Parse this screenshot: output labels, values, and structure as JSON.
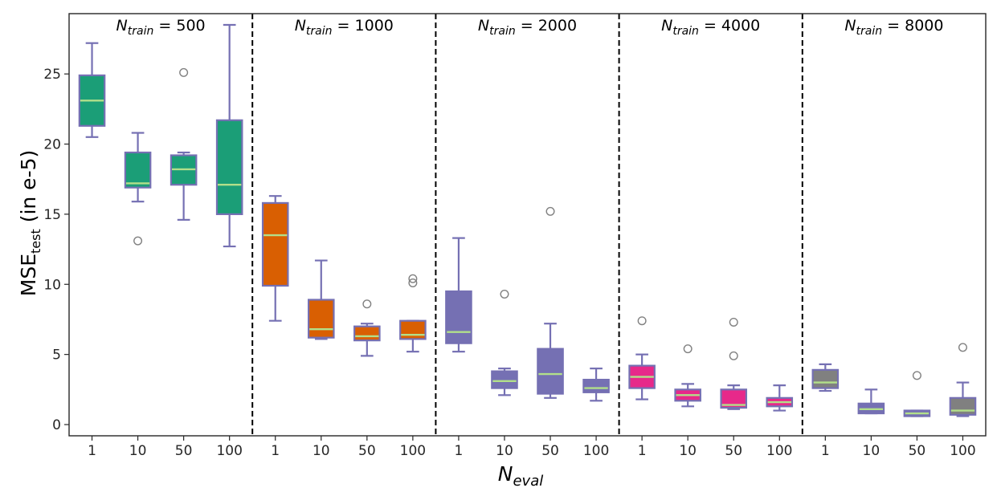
{
  "chart_data": {
    "type": "boxplot",
    "ylabel": {
      "main": "MSE",
      "sub": "test",
      "suffix": "  (in e-5)"
    },
    "xlabel": {
      "main": "N",
      "sub": "eval"
    },
    "ylim": [
      -0.8,
      29.3
    ],
    "yticks": [
      0,
      5,
      10,
      15,
      20,
      25
    ],
    "categories": [
      "1",
      "10",
      "50",
      "100"
    ],
    "box_edge_color": "#7570b3",
    "median_color": "#b2df8a",
    "outlier_color": "#808080",
    "panels": [
      {
        "label": {
          "main": "N",
          "sub": "train",
          "value": " = 500"
        },
        "fill": "#1b9e77",
        "boxes": [
          {
            "category": "1",
            "whislo": 20.5,
            "q1": 21.3,
            "med": 23.1,
            "q3": 24.9,
            "whishi": 27.2,
            "fliers": [],
            "filled": true
          },
          {
            "category": "10",
            "whislo": 15.9,
            "q1": 16.9,
            "med": 17.2,
            "q3": 19.4,
            "whishi": 20.8,
            "fliers": [
              13.1
            ],
            "filled": true
          },
          {
            "category": "50",
            "whislo": 14.6,
            "q1": 17.1,
            "med": 18.2,
            "q3": 19.2,
            "whishi": 19.4,
            "fliers": [
              25.1
            ],
            "filled": true
          },
          {
            "category": "100",
            "whislo": 12.7,
            "q1": 15.0,
            "med": 17.1,
            "q3": 21.7,
            "whishi": 28.5,
            "fliers": [],
            "filled": true
          }
        ]
      },
      {
        "label": {
          "main": "N",
          "sub": "train",
          "value": " = 1000"
        },
        "fill": "#d95f02",
        "boxes": [
          {
            "category": "1",
            "whislo": 7.4,
            "q1": 9.9,
            "med": 13.5,
            "q3": 15.8,
            "whishi": 16.3,
            "fliers": [],
            "filled": true
          },
          {
            "category": "10",
            "whislo": 6.1,
            "q1": 6.2,
            "med": 6.8,
            "q3": 8.9,
            "whishi": 11.7,
            "fliers": [],
            "filled": true
          },
          {
            "category": "50",
            "whislo": 4.9,
            "q1": 6.0,
            "med": 6.3,
            "q3": 7.0,
            "whishi": 7.2,
            "fliers": [
              8.6
            ],
            "filled": true
          },
          {
            "category": "100",
            "whislo": 5.2,
            "q1": 6.1,
            "med": 6.4,
            "q3": 7.4,
            "whishi": 7.4,
            "fliers": [
              10.1,
              10.4
            ],
            "filled": true
          }
        ]
      },
      {
        "label": {
          "main": "N",
          "sub": "train",
          "value": " = 2000"
        },
        "fill": "#7570b3",
        "boxes": [
          {
            "category": "1",
            "whislo": 5.2,
            "q1": 5.8,
            "med": 6.6,
            "q3": 9.5,
            "whishi": 13.3,
            "fliers": [],
            "filled": true
          },
          {
            "category": "10",
            "whislo": 2.1,
            "q1": 2.6,
            "med": 3.1,
            "q3": 3.8,
            "whishi": 4.0,
            "fliers": [
              9.3
            ],
            "filled": true
          },
          {
            "category": "50",
            "whislo": 1.9,
            "q1": 2.2,
            "med": 3.6,
            "q3": 5.4,
            "whishi": 7.2,
            "fliers": [
              15.2
            ],
            "filled": true
          },
          {
            "category": "100",
            "whislo": 1.7,
            "q1": 2.3,
            "med": 2.6,
            "q3": 3.2,
            "whishi": 4.0,
            "fliers": [],
            "filled": true
          }
        ]
      },
      {
        "label": {
          "main": "N",
          "sub": "train",
          "value": " = 4000"
        },
        "fill": "#e7298a",
        "boxes": [
          {
            "category": "1",
            "whislo": 1.8,
            "q1": 2.6,
            "med": 3.4,
            "q3": 4.2,
            "whishi": 5.0,
            "fliers": [
              7.4
            ],
            "filled": true
          },
          {
            "category": "10",
            "whislo": 1.3,
            "q1": 1.7,
            "med": 2.1,
            "q3": 2.5,
            "whishi": 2.9,
            "fliers": [
              5.4
            ],
            "filled": true
          },
          {
            "category": "50",
            "whislo": 1.1,
            "q1": 1.2,
            "med": 1.4,
            "q3": 2.5,
            "whishi": 2.8,
            "fliers": [
              4.9,
              7.3
            ],
            "filled": true
          },
          {
            "category": "100",
            "whislo": 1.0,
            "q1": 1.3,
            "med": 1.6,
            "q3": 1.9,
            "whishi": 2.8,
            "fliers": [],
            "filled": true
          }
        ]
      },
      {
        "label": {
          "main": "N",
          "sub": "train",
          "value": " = 8000"
        },
        "fill": "#808080",
        "boxes": [
          {
            "category": "1",
            "whislo": 2.4,
            "q1": 2.6,
            "med": 3.0,
            "q3": 3.9,
            "whishi": 4.3,
            "fliers": [],
            "filled": true
          },
          {
            "category": "10",
            "whislo": 0.8,
            "q1": 0.8,
            "med": 1.1,
            "q3": 1.5,
            "whishi": 2.5,
            "fliers": [],
            "filled": false
          },
          {
            "category": "50",
            "whislo": 0.6,
            "q1": 0.6,
            "med": 0.8,
            "q3": 1.0,
            "whishi": 1.0,
            "fliers": [
              3.5
            ],
            "filled": false
          },
          {
            "category": "100",
            "whislo": 0.6,
            "q1": 0.7,
            "med": 1.0,
            "q3": 1.9,
            "whishi": 3.0,
            "fliers": [
              5.5
            ],
            "filled": true
          }
        ]
      }
    ]
  }
}
